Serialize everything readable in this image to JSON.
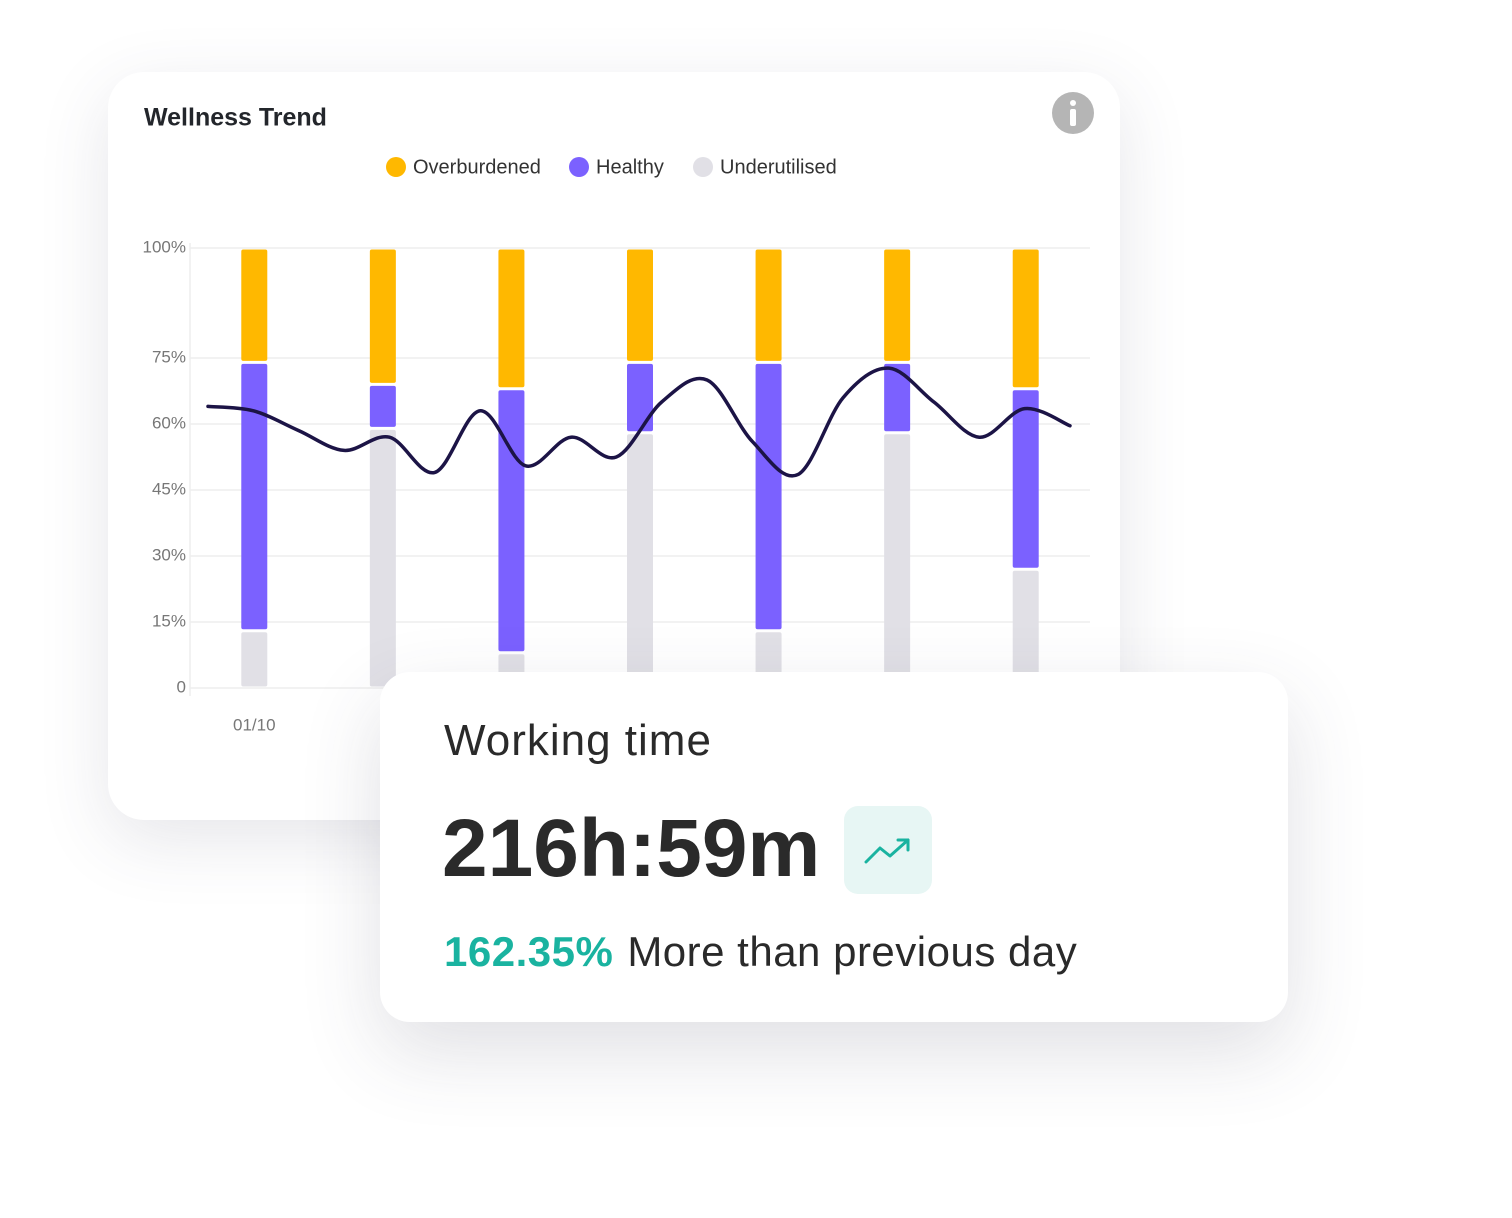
{
  "chart_data": {
    "type": "bar",
    "stacked": true,
    "title": "Wellness Trend",
    "categories": [
      "01/10",
      null,
      null,
      null,
      null,
      null,
      null
    ],
    "series": [
      {
        "name": "Overburdened",
        "color": "#ffb800",
        "values": [
          26,
          31,
          32,
          26,
          26,
          26,
          32
        ]
      },
      {
        "name": "Healthy",
        "color": "#7b61ff",
        "values": [
          61,
          10,
          60,
          16,
          61,
          16,
          41
        ]
      },
      {
        "name": "Underutilised",
        "color": "#e1e0e6",
        "values": [
          13,
          59,
          8,
          58,
          13,
          58,
          27
        ]
      }
    ],
    "trend": {
      "color": "#1c1446",
      "values": [
        64,
        63,
        58.5,
        54,
        57,
        49,
        63,
        50.5,
        57,
        52.5,
        65,
        70,
        56,
        48.5,
        66,
        72.7,
        65,
        57,
        63.5,
        59.6
      ]
    },
    "ylim": [
      0,
      100
    ],
    "yticks": [
      0,
      {
        "value": 15,
        "label": "15%"
      },
      {
        "value": 30,
        "label": "30%"
      },
      {
        "value": 45,
        "label": "45%"
      },
      {
        "value": 60,
        "label": "60%"
      },
      {
        "value": 75,
        "label": "75%"
      },
      {
        "value": 100,
        "label": "100%"
      }
    ],
    "grid": true
  },
  "card": {
    "title": "Working time",
    "value": "216h:59m",
    "change": "162.35%",
    "change_text": "More than previous day"
  }
}
